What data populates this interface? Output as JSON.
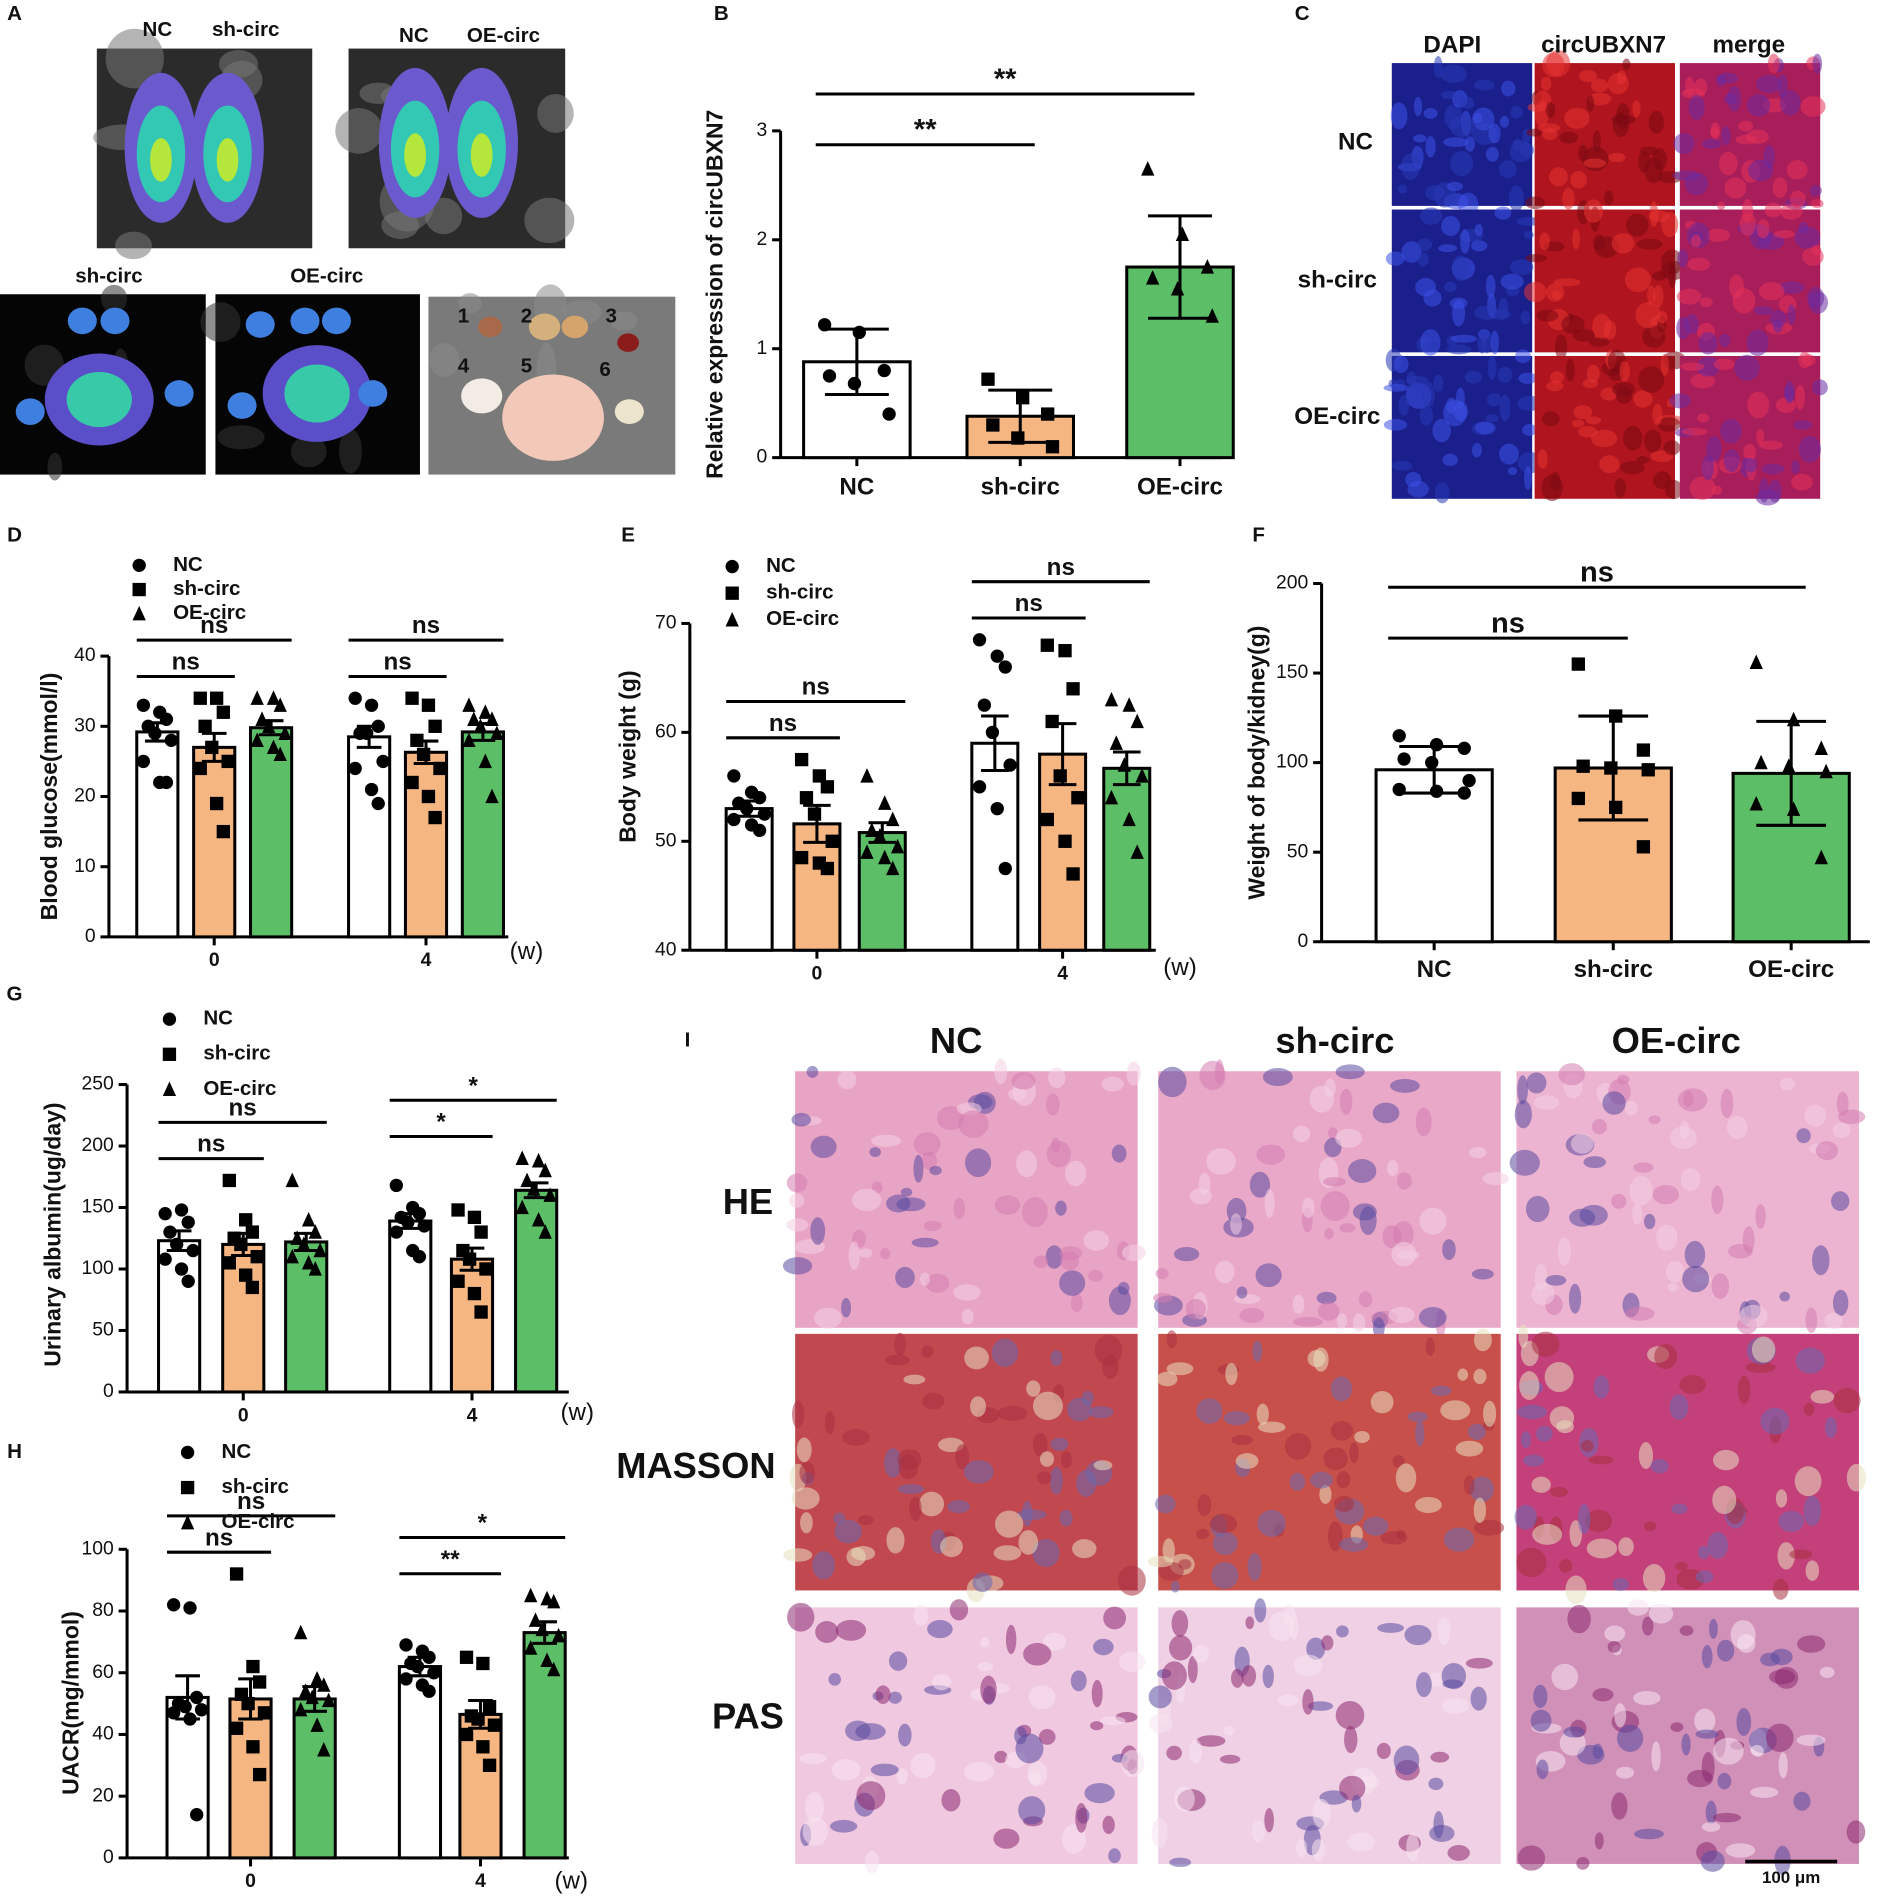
{
  "chart_data": [
    {
      "type": "bar",
      "panel": "B",
      "ylabel": "Relative expression of circUBXN7",
      "categories": [
        "NC",
        "sh-circ",
        "OE-circ"
      ],
      "values": [
        0.88,
        0.38,
        1.75
      ],
      "errors": [
        0.3,
        0.24,
        0.47
      ],
      "colors": [
        "#ffffff",
        "#f5b681",
        "#5cbf68"
      ],
      "markers": [
        "circle",
        "square",
        "triangle"
      ],
      "points": [
        [
          1.22,
          1.15,
          0.8,
          0.75,
          0.68,
          0.4
        ],
        [
          0.72,
          0.55,
          0.4,
          0.3,
          0.18,
          0.1
        ],
        [
          2.65,
          2.05,
          1.75,
          1.65,
          1.55,
          1.3
        ]
      ],
      "ylim": [
        0,
        3
      ],
      "yticks": [
        0,
        1,
        2,
        3
      ],
      "annotations": [
        {
          "text": "**",
          "pair": [
            0,
            1
          ]
        },
        {
          "text": "**",
          "pair": [
            0,
            2
          ]
        }
      ]
    },
    {
      "type": "grouped_bar",
      "panel": "D",
      "ylabel": "Blood glucose(mmol/l)",
      "categories": [
        "0",
        "4"
      ],
      "x_unit": "(w)",
      "ylim": [
        0,
        40
      ],
      "yticks": [
        0,
        10,
        20,
        30,
        40
      ],
      "series": [
        {
          "name": "NC",
          "color": "#ffffff",
          "marker": "circle",
          "values": [
            29.2,
            28.5
          ],
          "errors": [
            1.3,
            1.5
          ],
          "points": [
            [
              33,
              32,
              31,
              30,
              29,
              28,
              25,
              22,
              22
            ],
            [
              34,
              33,
              30,
              29,
              29,
              25,
              24,
              21,
              19
            ]
          ]
        },
        {
          "name": "sh-circ",
          "color": "#f5b681",
          "marker": "square",
          "values": [
            27,
            26.3
          ],
          "errors": [
            2,
            1.6
          ],
          "points": [
            [
              34,
              34,
              32,
              30,
              27,
              25,
              24,
              19,
              15
            ],
            [
              34,
              33,
              30,
              28,
              26,
              24,
              22,
              20,
              17
            ]
          ]
        },
        {
          "name": "OE-circ",
          "color": "#5cbf68",
          "marker": "triangle",
          "values": [
            29.8,
            29.2
          ],
          "errors": [
            1,
            1.2
          ],
          "points": [
            [
              34,
              34,
              33,
              31,
              30,
              29,
              28,
              27,
              26
            ],
            [
              33,
              32,
              31,
              31,
              30,
              29,
              28,
              25,
              20
            ]
          ]
        }
      ],
      "annotations": [
        {
          "text": "ns",
          "group": 0,
          "pair": [
            0,
            1
          ]
        },
        {
          "text": "ns",
          "group": 0,
          "pair": [
            0,
            2
          ]
        },
        {
          "text": "ns",
          "group": 1,
          "pair": [
            0,
            1
          ]
        },
        {
          "text": "ns",
          "group": 1,
          "pair": [
            0,
            2
          ]
        }
      ]
    },
    {
      "type": "grouped_bar",
      "panel": "E",
      "ylabel": "Body weight (g)",
      "categories": [
        "0",
        "4"
      ],
      "x_unit": "(w)",
      "ylim": [
        40,
        70
      ],
      "yticks": [
        40,
        50,
        60,
        70
      ],
      "series": [
        {
          "name": "NC",
          "color": "#ffffff",
          "marker": "circle",
          "values": [
            53,
            59
          ],
          "errors": [
            0.7,
            2.5
          ],
          "points": [
            [
              56,
              54.5,
              54,
              53.5,
              53,
              52.5,
              52,
              51.5,
              51
            ],
            [
              68.5,
              67,
              66,
              62.5,
              60,
              57,
              55,
              53,
              47.5
            ]
          ]
        },
        {
          "name": "sh-circ",
          "color": "#f5b681",
          "marker": "square",
          "values": [
            51.6,
            58
          ],
          "errors": [
            1.7,
            2.8
          ],
          "points": [
            [
              57.5,
              56,
              55,
              54,
              52.5,
              50,
              48.5,
              48,
              47.5
            ],
            [
              68,
              67.5,
              64,
              61,
              56,
              54,
              52,
              50,
              47
            ]
          ]
        },
        {
          "name": "OE-circ",
          "color": "#5cbf68",
          "marker": "triangle",
          "values": [
            50.8,
            56.7
          ],
          "errors": [
            0.9,
            1.5
          ],
          "points": [
            [
              56,
              53.5,
              52,
              51,
              50.5,
              49.5,
              49,
              48.5,
              47.5
            ],
            [
              63,
              62.5,
              61,
              59,
              57,
              56,
              54,
              52,
              49
            ]
          ]
        }
      ],
      "annotations": [
        {
          "text": "ns",
          "group": 0,
          "pair": [
            0,
            1
          ]
        },
        {
          "text": "ns",
          "group": 0,
          "pair": [
            0,
            2
          ]
        },
        {
          "text": "ns",
          "group": 1,
          "pair": [
            0,
            1
          ]
        },
        {
          "text": "ns",
          "group": 1,
          "pair": [
            0,
            2
          ]
        }
      ]
    },
    {
      "type": "bar",
      "panel": "F",
      "ylabel": "Weight of body/kidney(g)",
      "categories": [
        "NC",
        "sh-circ",
        "OE-circ"
      ],
      "values": [
        96,
        97,
        94
      ],
      "errors": [
        13,
        29,
        29
      ],
      "colors": [
        "#ffffff",
        "#f5b681",
        "#5cbf68"
      ],
      "markers": [
        "circle",
        "square",
        "triangle"
      ],
      "points": [
        [
          115,
          110,
          108,
          102,
          100,
          90,
          85,
          84,
          83
        ],
        [
          155,
          126,
          107,
          98,
          97,
          96,
          80,
          75,
          53
        ],
        [
          156,
          124,
          108,
          100,
          98,
          95,
          77,
          74,
          47
        ]
      ],
      "ylim": [
        0,
        200
      ],
      "yticks": [
        0,
        50,
        100,
        150,
        200
      ],
      "annotations": [
        {
          "text": "ns",
          "pair": [
            0,
            1
          ]
        },
        {
          "text": "ns",
          "pair": [
            0,
            2
          ]
        }
      ]
    },
    {
      "type": "grouped_bar",
      "panel": "G",
      "ylabel": "Urinary albumin(ug/day)",
      "categories": [
        "0",
        "4"
      ],
      "x_unit": "(w)",
      "ylim": [
        0,
        250
      ],
      "yticks": [
        0,
        50,
        100,
        150,
        200,
        250
      ],
      "series": [
        {
          "name": "NC",
          "color": "#ffffff",
          "marker": "circle",
          "values": [
            123,
            139
          ],
          "errors": [
            8,
            6
          ],
          "points": [
            [
              145,
              148,
              138,
              130,
              120,
              115,
              108,
              100,
              90
            ],
            [
              168,
              150,
              145,
              142,
              138,
              135,
              130,
              115,
              110
            ]
          ]
        },
        {
          "name": "sh-circ",
          "color": "#f5b681",
          "marker": "square",
          "values": [
            120,
            108
          ],
          "errors": [
            9,
            9
          ],
          "points": [
            [
              172,
              140,
              130,
              125,
              120,
              110,
              105,
              95,
              85
            ],
            [
              148,
              142,
              130,
              115,
              108,
              100,
              90,
              80,
              65
            ]
          ]
        },
        {
          "name": "OE-circ",
          "color": "#5cbf68",
          "marker": "triangle",
          "values": [
            122,
            164
          ],
          "errors": [
            7,
            6
          ],
          "points": [
            [
              172,
              140,
              130,
              125,
              120,
              115,
              110,
              105,
              100
            ],
            [
              190,
              188,
              180,
              172,
              165,
              160,
              150,
              140,
              130
            ]
          ]
        }
      ],
      "annotations": [
        {
          "text": "ns",
          "group": 0,
          "pair": [
            0,
            1
          ]
        },
        {
          "text": "ns",
          "group": 0,
          "pair": [
            0,
            2
          ]
        },
        {
          "text": "*",
          "group": 1,
          "pair": [
            0,
            1
          ]
        },
        {
          "text": "*",
          "group": 1,
          "pair": [
            0,
            2
          ]
        }
      ]
    },
    {
      "type": "grouped_bar",
      "panel": "H",
      "ylabel": "UACR(mg/mmol)",
      "categories": [
        "0",
        "4"
      ],
      "x_unit": "(w)",
      "ylim": [
        0,
        100
      ],
      "yticks": [
        0,
        20,
        40,
        60,
        80,
        100
      ],
      "series": [
        {
          "name": "NC",
          "color": "#ffffff",
          "marker": "circle",
          "values": [
            52,
            62
          ],
          "errors": [
            7,
            3
          ],
          "points": [
            [
              82,
              81,
              52,
              50,
              49,
              48,
              47,
              45,
              14
            ],
            [
              69,
              67,
              65,
              63,
              62,
              60,
              58,
              56,
              54
            ]
          ]
        },
        {
          "name": "sh-circ",
          "color": "#f5b681",
          "marker": "square",
          "values": [
            51.5,
            46.5
          ],
          "errors": [
            6.5,
            4.5
          ],
          "points": [
            [
              92,
              62,
              57,
              53,
              50,
              47,
              42,
              36,
              27
            ],
            [
              65,
              63,
              49,
              46,
              45,
              43,
              40,
              36,
              30
            ]
          ]
        },
        {
          "name": "OE-circ",
          "color": "#5cbf68",
          "marker": "triangle",
          "values": [
            51.5,
            73
          ],
          "errors": [
            4,
            3.5
          ],
          "points": [
            [
              73,
              58,
              56,
              54,
              52,
              51,
              48,
              43,
              35
            ],
            [
              85,
              84,
              83,
              77,
              74,
              72,
              68,
              64,
              61
            ]
          ]
        }
      ],
      "annotations": [
        {
          "text": "ns",
          "group": 0,
          "pair": [
            0,
            1
          ]
        },
        {
          "text": "ns",
          "group": 0,
          "pair": [
            0,
            2
          ]
        },
        {
          "text": "**",
          "group": 1,
          "pair": [
            0,
            1
          ]
        },
        {
          "text": "*",
          "group": 1,
          "pair": [
            0,
            2
          ]
        }
      ]
    }
  ],
  "image_panels": {
    "A": {
      "panel": "A",
      "top_labels": [
        "NC",
        "sh-circ",
        "NC",
        "OE-circ"
      ],
      "bottom_labels": [
        "sh-circ",
        "OE-circ"
      ],
      "organ_numbers": [
        "1",
        "2",
        "3",
        "4",
        "5",
        "6"
      ]
    },
    "C": {
      "panel": "C",
      "columns": [
        "DAPI",
        "circUBXN7",
        "merge"
      ],
      "rows": [
        "NC",
        "sh-circ",
        "OE-circ"
      ]
    },
    "I": {
      "panel": "I",
      "columns": [
        "NC",
        "sh-circ",
        "OE-circ"
      ],
      "rows": [
        "HE",
        "MASSON",
        "PAS"
      ],
      "scale_bar": "100 μm"
    }
  }
}
